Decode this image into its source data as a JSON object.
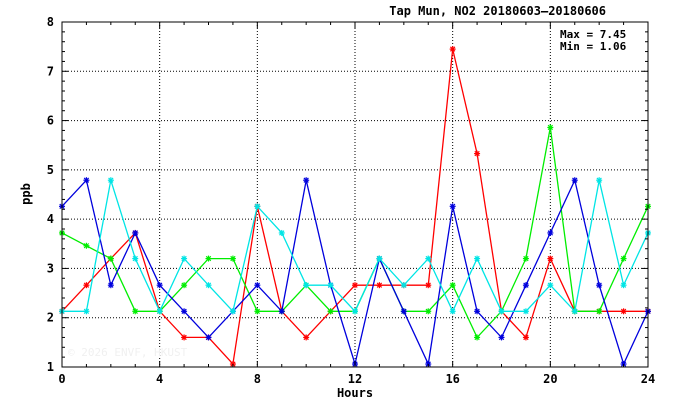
{
  "chart_data": {
    "type": "line",
    "title": "Tap Mun, NO2 20180603–20180606",
    "xlabel": "Hours",
    "ylabel": "ppb",
    "xlim": [
      0,
      24
    ],
    "ylim": [
      1,
      8
    ],
    "x_ticks": [
      0,
      4,
      8,
      12,
      16,
      20,
      24
    ],
    "y_ticks": [
      1,
      2,
      3,
      4,
      5,
      6,
      7,
      8
    ],
    "grid": true,
    "stats": {
      "max": "Max = 7.45",
      "min": "Min = 1.06"
    },
    "watermark": "© 2026 ENVF, HKUST",
    "x": [
      0,
      1,
      2,
      3,
      4,
      5,
      6,
      7,
      8,
      9,
      10,
      11,
      12,
      13,
      14,
      15,
      16,
      17,
      18,
      19,
      20,
      21,
      22,
      23,
      24
    ],
    "series": [
      {
        "color": "#ff0000",
        "values": [
          2.13,
          2.66,
          3.2,
          3.72,
          2.13,
          1.6,
          1.6,
          1.06,
          4.26,
          2.13,
          1.6,
          2.13,
          2.66,
          2.66,
          2.66,
          2.66,
          7.45,
          5.33,
          2.13,
          1.6,
          3.2,
          2.13,
          2.13,
          2.13,
          2.13
        ]
      },
      {
        "color": "#00ee00",
        "values": [
          3.72,
          3.46,
          3.2,
          2.13,
          2.13,
          2.66,
          3.2,
          3.2,
          2.13,
          2.13,
          2.66,
          2.13,
          2.13,
          3.2,
          2.13,
          2.13,
          2.66,
          1.6,
          2.13,
          3.2,
          5.86,
          2.13,
          2.13,
          3.2,
          4.26
        ]
      },
      {
        "color": "#0000dd",
        "values": [
          4.26,
          4.79,
          2.66,
          3.72,
          2.66,
          2.13,
          1.6,
          2.13,
          2.66,
          2.13,
          4.79,
          2.66,
          1.06,
          3.2,
          2.13,
          1.06,
          4.26,
          2.13,
          1.6,
          2.66,
          3.72,
          4.79,
          2.66,
          1.06,
          2.13
        ]
      },
      {
        "color": "#00e5e5",
        "values": [
          2.13,
          2.13,
          4.79,
          3.2,
          2.13,
          3.2,
          2.66,
          2.13,
          4.26,
          3.72,
          2.66,
          2.66,
          2.13,
          3.2,
          2.66,
          3.2,
          2.13,
          3.2,
          2.13,
          2.13,
          2.66,
          2.13,
          4.79,
          2.66,
          3.72
        ]
      }
    ]
  }
}
